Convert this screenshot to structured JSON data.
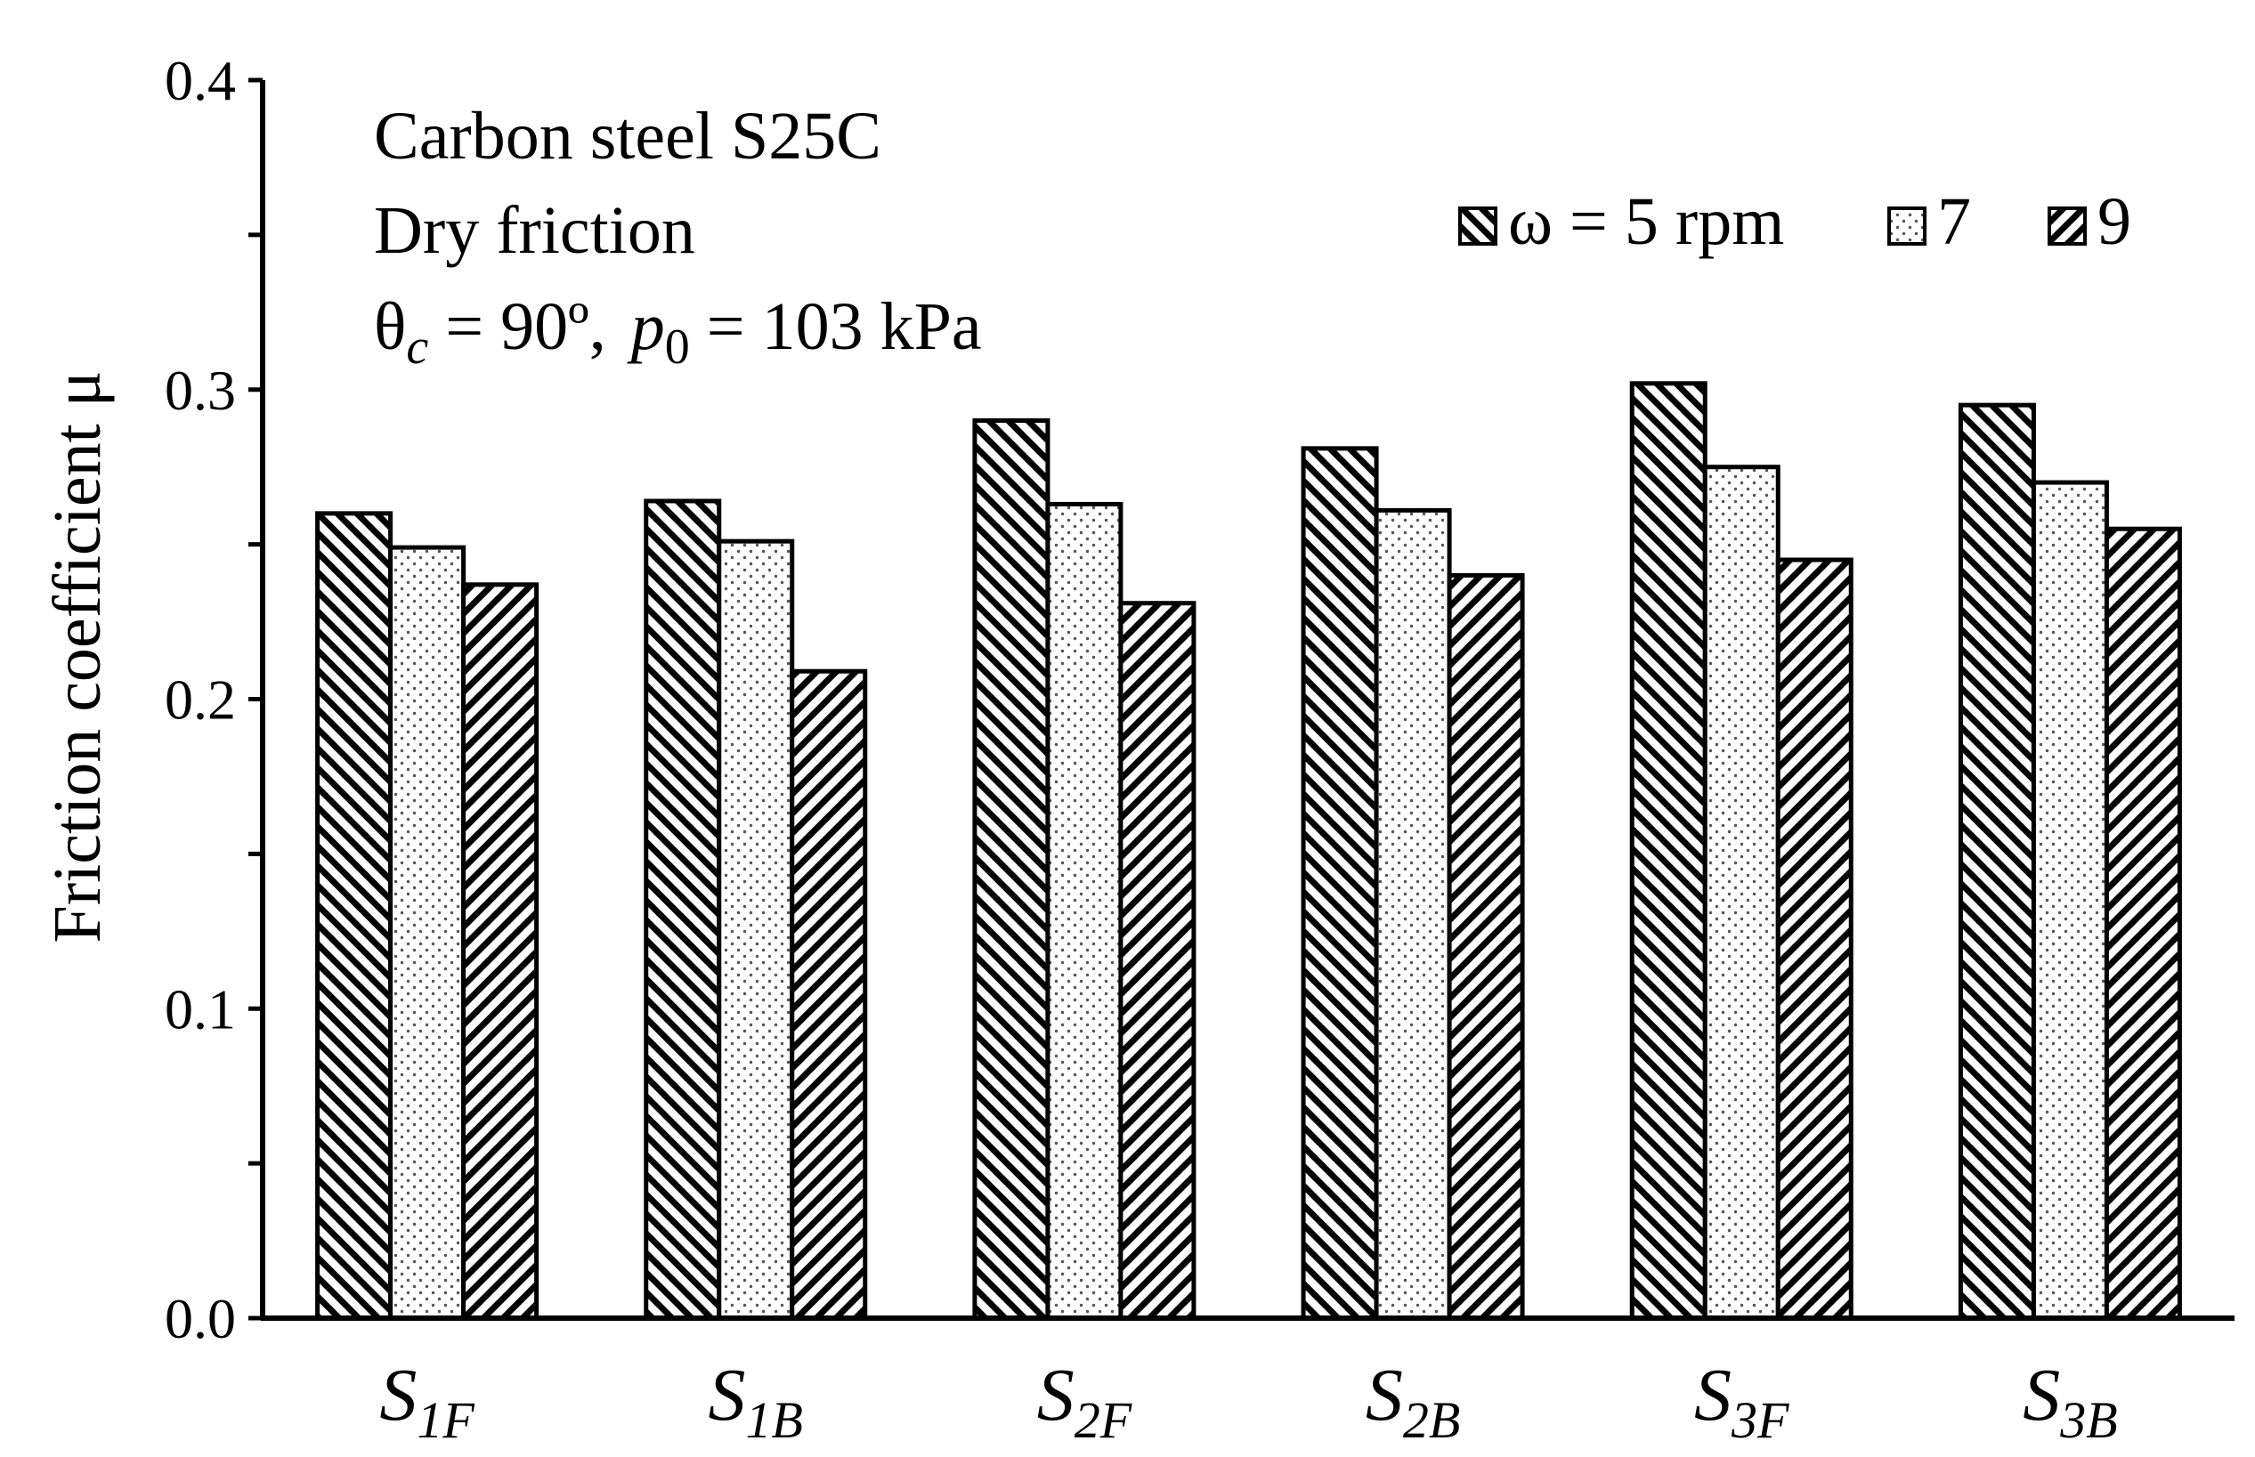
{
  "chart_data": {
    "type": "bar",
    "title": "",
    "annotations": {
      "line1": "Carbon steel S25C",
      "line2": "Dry friction",
      "line3_theta": "θ",
      "line3_theta_sub": "c",
      "line3_theta_val": " = 90º,",
      "line3_p": "p",
      "line3_p_sub": "0",
      "line3_p_val": " = 103 kPa"
    },
    "xlabel": "",
    "ylabel": "Friction coefficient μ",
    "ylim": [
      0,
      0.4
    ],
    "yticks": [
      "0.0",
      "0.1",
      "0.2",
      "0.3",
      "0.4"
    ],
    "categories": [
      {
        "main": "S",
        "sub": "1F"
      },
      {
        "main": "S",
        "sub": "1B"
      },
      {
        "main": "S",
        "sub": "2F"
      },
      {
        "main": "S",
        "sub": "2B"
      },
      {
        "main": "S",
        "sub": "3F"
      },
      {
        "main": "S",
        "sub": "3B"
      }
    ],
    "series": [
      {
        "name": "ω = 5 rpm",
        "pattern": "hatch-down",
        "values": [
          0.26,
          0.264,
          0.29,
          0.281,
          0.302,
          0.295
        ]
      },
      {
        "name": "7",
        "pattern": "dots",
        "values": [
          0.249,
          0.251,
          0.263,
          0.261,
          0.275,
          0.27
        ]
      },
      {
        "name": "9",
        "pattern": "hatch-up",
        "values": [
          0.237,
          0.209,
          0.231,
          0.24,
          0.245,
          0.255
        ]
      }
    ],
    "legend": {
      "position": "top-right"
    }
  },
  "colors": {
    "ink": "#000000",
    "background": "#ffffff"
  }
}
